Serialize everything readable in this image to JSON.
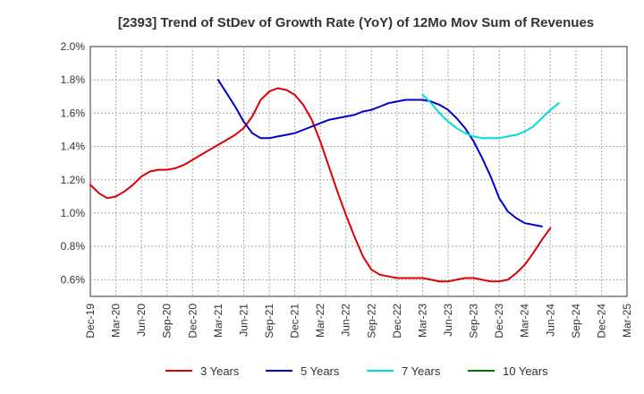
{
  "chart_data": {
    "type": "line",
    "title": "[2393]  Trend of StDev of Growth Rate (YoY) of 12Mo Mov Sum of Revenues",
    "xlabel": "",
    "ylabel": "",
    "ylim": [
      0.5,
      2.0
    ],
    "y_ticks": [
      "0.6%",
      "0.8%",
      "1.0%",
      "1.2%",
      "1.4%",
      "1.6%",
      "1.8%",
      "2.0%"
    ],
    "x_ticks": [
      "Dec-19",
      "Mar-20",
      "Jun-20",
      "Sep-20",
      "Dec-20",
      "Mar-21",
      "Jun-21",
      "Sep-21",
      "Dec-21",
      "Mar-22",
      "Jun-22",
      "Sep-22",
      "Dec-22",
      "Mar-23",
      "Jun-23",
      "Sep-23",
      "Dec-23",
      "Mar-24",
      "Jun-24",
      "Sep-24",
      "Dec-24",
      "Mar-25"
    ],
    "x_months_index_start": "Dec-19",
    "grid": true,
    "legend_position": "bottom",
    "series": [
      {
        "name": "3 Years",
        "color": "#dd0000",
        "start_index": 0,
        "values": [
          1.17,
          1.12,
          1.09,
          1.1,
          1.13,
          1.17,
          1.22,
          1.25,
          1.26,
          1.26,
          1.27,
          1.29,
          1.32,
          1.35,
          1.38,
          1.41,
          1.44,
          1.47,
          1.51,
          1.58,
          1.68,
          1.73,
          1.75,
          1.74,
          1.71,
          1.65,
          1.56,
          1.43,
          1.28,
          1.13,
          0.99,
          0.86,
          0.74,
          0.66,
          0.63,
          0.62,
          0.61,
          0.61,
          0.61,
          0.61,
          0.6,
          0.59,
          0.59,
          0.6,
          0.61,
          0.61,
          0.6,
          0.59,
          0.59,
          0.6,
          0.64,
          0.69,
          0.76,
          0.84,
          0.91
        ]
      },
      {
        "name": "5 Years",
        "color": "#0000cc",
        "start_index": 15,
        "values": [
          1.8,
          1.72,
          1.64,
          1.55,
          1.48,
          1.45,
          1.45,
          1.46,
          1.47,
          1.48,
          1.5,
          1.52,
          1.54,
          1.56,
          1.57,
          1.58,
          1.59,
          1.61,
          1.62,
          1.64,
          1.66,
          1.67,
          1.68,
          1.68,
          1.68,
          1.67,
          1.65,
          1.62,
          1.57,
          1.51,
          1.43,
          1.33,
          1.22,
          1.09,
          1.01,
          0.97,
          0.94,
          0.93,
          0.92
        ]
      },
      {
        "name": "7 Years",
        "color": "#00dddd",
        "start_index": 39,
        "values": [
          1.71,
          1.66,
          1.6,
          1.55,
          1.51,
          1.48,
          1.46,
          1.45,
          1.45,
          1.45,
          1.46,
          1.47,
          1.49,
          1.52,
          1.57,
          1.62,
          1.66
        ]
      },
      {
        "name": "10 Years",
        "color": "#007700",
        "start_index": 0,
        "values": []
      }
    ]
  }
}
